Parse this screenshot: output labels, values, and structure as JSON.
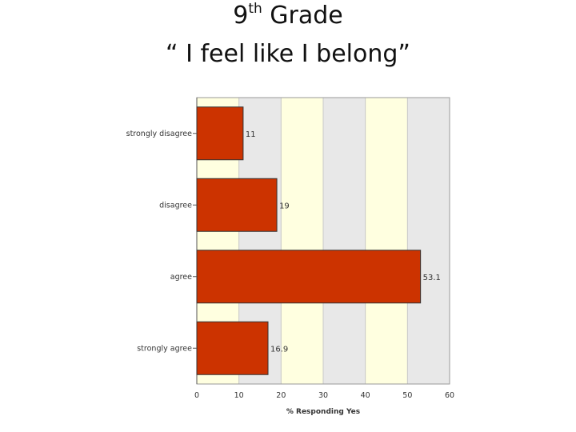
{
  "header": {
    "title_prefix": "9",
    "title_sup": "th",
    "title_suffix": " Grade",
    "subtitle": "“ I feel like I belong”"
  },
  "chart_data": {
    "type": "bar",
    "orientation": "horizontal",
    "categories": [
      "strongly disagree",
      "disagree",
      "agree",
      "strongly agree"
    ],
    "values": [
      11,
      19,
      53.1,
      16.9
    ],
    "value_labels": [
      "11",
      "19",
      "53.1",
      "16.9"
    ],
    "xlabel": "% Responding Yes",
    "ylabel": "",
    "xlim": [
      0,
      60
    ],
    "xticks": [
      0,
      10,
      20,
      30,
      40,
      50,
      60
    ],
    "grid": true,
    "bar_color": "#cc3300",
    "band_colors": [
      "#ffffe0",
      "#e8e8e8"
    ]
  }
}
